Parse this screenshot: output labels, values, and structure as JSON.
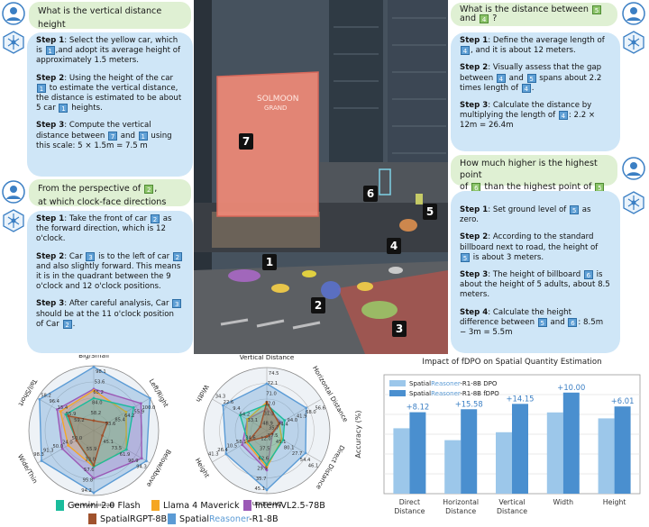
{
  "left_q1": {
    "pre": "What is the vertical distance height",
    "between": "between",
    "and": "and",
    "end": "?",
    "tag_a": "7",
    "tag_b": "1"
  },
  "left_a1": {
    "s1_label": "Step 1",
    "s1_a": ": Select the yellow car, which is",
    "s1_tag": "1",
    "s1_b": ",and adopt its average height of approximately 1.5 meters.",
    "s2_label": "Step 2",
    "s2_a": ": Using the height of the car",
    "s2_tag": "1",
    "s2_b": "to estimate the vertical distance, the distance is estimated to be about 5 car",
    "s2_tag2": "1",
    "s2_c": "heights.",
    "s3_label": "Step 3",
    "s3_a": ": Compute the vertical distance between",
    "s3_tag": "7",
    "s3_and": "and",
    "s3_tag2": "1",
    "s3_b": "using this scale: 5 × 1.5m = 7.5 m"
  },
  "left_q2": {
    "pre": "From the perspective of",
    "tag_a": "2",
    "line2": "at which clock-face directions are",
    "tag_b": "3",
    "end": "?"
  },
  "left_a2": {
    "s1_label": "Step 1",
    "s1_a": ": Take the front of car",
    "s1_tag": "2",
    "s1_b": "as the forward direction, which is 12 o'clock.",
    "s2_label": "Step 2",
    "s2_a": ": Car",
    "s2_tag": "3",
    "s2_b": "is to the left of car",
    "s2_tag2": "2",
    "s2_c": "and also slightly forward. This means it is in the quadrant between the 9 o'clock and 12 o'clock positions.",
    "s3_label": "Step 3",
    "s3_a": ": After careful analysis, Car",
    "s3_tag": "3",
    "s3_b": "should be at the 11 o'clock position of Car",
    "s3_tag2": "2",
    "s3_c": "."
  },
  "right_q1": {
    "pre": "What is the distance between",
    "tag_a": "5",
    "and": "and",
    "tag_b": "4",
    "end": "?"
  },
  "right_a1": {
    "s1_label": "Step 1",
    "s1_a": ": Define the average length of",
    "s1_tag": "4",
    "s1_b": ", and it is about 12 meters.",
    "s2_label": "Step 2",
    "s2_a": ": Visually assess that the gap between",
    "s2_tag": "4",
    "s2_and": "and",
    "s2_tag2": "5",
    "s2_b": "spans about 2.2 times length of",
    "s2_tag3": "4",
    "s2_c": ".",
    "s3_label": "Step 3",
    "s3_a": ": Calculate the distance by multiplying the length of",
    "s3_tag": "4",
    "s3_b": ": 2.2 × 12m = 26.4m"
  },
  "right_q2": {
    "pre": "How much higher is the highest point",
    "of": "of",
    "tag_a": "6",
    "mid": "than the highest point of",
    "tag_b": "5",
    "end": "?"
  },
  "right_a2": {
    "s1_label": "Step 1",
    "s1_a": ": Set ground level of",
    "s1_tag": "5",
    "s1_b": "as zero.",
    "s2_label": "Step 2",
    "s2_a": ": According to the standard billboard next to road, the height of",
    "s2_tag": "5",
    "s2_b": "is about 3 meters.",
    "s3_label": "Step 3",
    "s3_a": ": The height of billboard",
    "s3_tag": "6",
    "s3_b": "is about the height of 5 adults, about 8.5 meters.",
    "s4_label": "Step 4",
    "s4_a": ": Calculate the height difference between",
    "s4_tag": "5",
    "s4_and": "and",
    "s4_tag2": "6",
    "s4_b": ": 8.5m − 3m = 5.5m"
  },
  "photo": {
    "labels": [
      "7",
      "6",
      "5",
      "4",
      "1",
      "2",
      "3"
    ],
    "sign_line1": "SOLMOON",
    "sign_line2": "GRAND"
  },
  "radar1": {
    "axes": [
      "Big/Small",
      "Left/Right",
      "Below/Above",
      "Behind/Front",
      "Wide/Thin",
      "Tall/Short"
    ],
    "series": [
      {
        "name": "Gemini 2.0 Flash",
        "color": "#1abc9c",
        "values": [
          50.0,
          71.0,
          58.2,
          55.9,
          30.5,
          50.0
        ]
      },
      {
        "name": "Llama 4 Maverick",
        "color": "#f5a623",
        "values": [
          61.9,
          57.6,
          58.2,
          55.9,
          45.5,
          59.2
        ]
      },
      {
        "name": "InternVL2.5-78B",
        "color": "#9b59b6",
        "values": [
          64.2,
          84.0,
          85.4,
          73.5,
          55.9,
          65.2
        ]
      },
      {
        "name": "SpatialRGPT-8B",
        "color": "#a0522d",
        "values": [
          15.4,
          24.0,
          15.4,
          53.6,
          30.5,
          45.1
        ]
      },
      {
        "name": "SpatialReasoner-R1-8B",
        "color": "#5b9bd5",
        "values": [
          98.1,
          100.0,
          93.7,
          95.8,
          93.0,
          96.4
        ]
      }
    ],
    "ticks": [
      "98.1",
      "100.0",
      "94.3",
      "94.2",
      "98.3",
      "58.2",
      "53.6",
      "55.9",
      "90.9",
      "95.8",
      "91.3",
      "96.4",
      "65.2",
      "64.2",
      "61.9",
      "57.6",
      "50.0",
      "15.4",
      "84.0",
      "85.4",
      "73.5",
      "33.0",
      "24.0",
      "55.9",
      "58.2",
      "53.6",
      "45.1",
      "55.9",
      "50.0",
      "59.2"
    ]
  },
  "radar2": {
    "axes": [
      "Vertical Distance",
      "Horizontal Distance",
      "Direct Distance",
      "Direction",
      "Height",
      "Width"
    ],
    "series": [
      {
        "name": "Gemini 2.0 Flash",
        "color": "#1abc9c",
        "values": [
          41.3,
          32.6,
          29.9,
          54.2,
          34.6,
          48.9
        ]
      },
      {
        "name": "Llama 4 Maverick",
        "color": "#f5a623",
        "values": [
          45.1,
          22.6,
          27.7,
          58.1,
          37.5,
          35.7
        ]
      },
      {
        "name": "InternVL2.5-78B",
        "color": "#9b59b6",
        "values": [
          34.3,
          26.4,
          10.5,
          62.6,
          45.1,
          35.7
        ]
      },
      {
        "name": "SpatialRGPT-8B",
        "color": "#a0522d",
        "values": [
          45.1,
          22.6,
          9.4,
          9.4,
          33.1,
          12.0
        ]
      },
      {
        "name": "SpatialReasoner-R1-8B",
        "color": "#5b9bd5",
        "values": [
          74.5,
          72.1,
          71.0,
          94.0,
          74.4,
          80.1
        ]
      }
    ],
    "ticks": [
      "74.5",
      "56.6",
      "46.1",
      "45.1",
      "41.3",
      "34.3",
      "72.1",
      "68.0",
      "54.4",
      "35.7",
      "26.4",
      "22.6",
      "71.0",
      "41.9",
      "27.7",
      "29.9",
      "10.5",
      "9.4",
      "12.0",
      "94.0",
      "80.1",
      "62.6",
      "58.1",
      "54.2",
      "31.3",
      "74.4",
      "45.1",
      "37.5",
      "34.6",
      "33.1",
      "48.9",
      "35.7",
      "57.5",
      "12.0"
    ]
  },
  "chart_data": {
    "type": "bar",
    "title": "Impact of fDPO on Spatial Quantity Estimation",
    "ylabel": "Accuracy (%)",
    "categories": [
      "Direct\nDistance",
      "Horizontal\nDistance",
      "Vertical\nDistance",
      "Width",
      "Height"
    ],
    "series": [
      {
        "name": "SpatialReasoner-R1-8B DPO",
        "color": "#9cc7ea",
        "values": [
          63,
          57,
          61,
          71,
          68
        ]
      },
      {
        "name": "SpatialReasoner-R1-8B fDPO",
        "color": "#4a8fcf",
        "values": [
          71.1,
          72.6,
          75.3,
          81.0,
          74.0
        ]
      }
    ],
    "deltas": [
      "+8.12",
      "+15.58",
      "+14.15",
      "+10.00",
      "+6.01"
    ],
    "ylim": [
      30,
      90
    ],
    "grid": true,
    "legend": "top-left"
  },
  "legend": {
    "items": [
      {
        "name": "Gemini 2.0 Flash",
        "color": "#1abc9c"
      },
      {
        "name": "Llama 4 Maverick",
        "color": "#f5a623"
      },
      {
        "name": "InternVL2.5-78B",
        "color": "#9b59b6"
      },
      {
        "name": "SpatialRGPT-8B",
        "color": "#a0522d"
      },
      {
        "name_a": "Spatial",
        "name_b": "Reasoner",
        "name_c": "-R1-8B",
        "color": "#5b9bd5"
      }
    ]
  },
  "colors": {
    "question_bg": "#dff0d3",
    "answer_bg": "#cfe6f7",
    "tag_blue": "#5fa0d6",
    "tag_green": "#8cc46a",
    "accent": "#5b9bd5"
  }
}
